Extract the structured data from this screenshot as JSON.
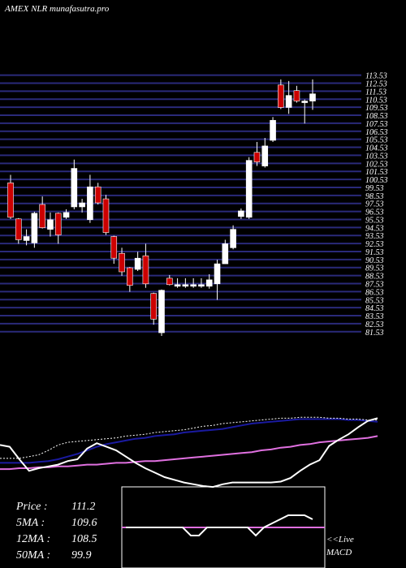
{
  "chart_data": {
    "type": "candlestick",
    "title": "AMEX  NLR munafasutra.pro",
    "up_color": "#ffffff",
    "down_color": "#cc0000",
    "grid_color": "#2a2a7a",
    "ylim": [
      80.9,
      114
    ],
    "yticks": [
      113.53,
      112.53,
      111.53,
      110.53,
      109.53,
      108.53,
      107.53,
      106.53,
      105.53,
      104.53,
      103.53,
      102.53,
      101.53,
      100.53,
      99.53,
      98.53,
      97.53,
      96.53,
      95.53,
      94.53,
      93.53,
      92.53,
      91.53,
      90.53,
      89.53,
      88.53,
      87.53,
      86.53,
      85.53,
      84.53,
      83.53,
      82.53,
      81.53
    ],
    "open": [
      100.1,
      95.6,
      92.9,
      92.6,
      97.4,
      94.3,
      96.3,
      95.8,
      97.1,
      97.1,
      95.5,
      99.6,
      98.1,
      93.4,
      91.3,
      89.5,
      89.3,
      91.0,
      86.3,
      81.4,
      88.2,
      87.2,
      87.2,
      87.2,
      87.2,
      87.2,
      87.5,
      90.0,
      92.0,
      95.9,
      95.8,
      103.9,
      102.2,
      105.4,
      112.3,
      109.5,
      111.6,
      110.1,
      110.3
    ],
    "high": [
      101.1,
      95.7,
      94.3,
      96.5,
      98.4,
      96.4,
      96.4,
      96.8,
      103.0,
      98.1,
      101.1,
      100.1,
      98.6,
      93.5,
      92.0,
      89.6,
      91.5,
      92.5,
      86.4,
      86.8,
      88.6,
      88.2,
      88.2,
      88.2,
      88.2,
      88.7,
      90.5,
      93.0,
      94.8,
      96.9,
      103.3,
      105.2,
      105.7,
      108.3,
      113.0,
      112.8,
      112.2,
      110.5,
      113.0
    ],
    "low": [
      95.6,
      92.5,
      92.3,
      92.0,
      94.4,
      93.4,
      92.5,
      95.6,
      96.8,
      96.4,
      95.1,
      97.4,
      93.6,
      90.0,
      88.5,
      86.5,
      89.1,
      87.0,
      82.4,
      81.0,
      87.3,
      87.0,
      87.0,
      87.0,
      87.0,
      86.9,
      85.5,
      90.0,
      91.8,
      95.6,
      95.6,
      102.2,
      102.0,
      105.2,
      109.3,
      108.7,
      110.1,
      107.5,
      109.2
    ],
    "close": [
      95.8,
      93.0,
      93.4,
      96.3,
      94.5,
      95.5,
      93.6,
      96.4,
      101.9,
      97.6,
      99.6,
      97.6,
      93.9,
      90.7,
      89.0,
      87.3,
      90.7,
      87.5,
      83.1,
      86.7,
      87.4,
      87.4,
      87.4,
      87.4,
      87.4,
      88.0,
      90.0,
      92.5,
      94.3,
      96.6,
      102.9,
      102.7,
      104.7,
      107.9,
      109.5,
      111.0,
      110.3,
      110.3,
      111.2
    ],
    "indicator": {
      "ylim": [
        0,
        100
      ],
      "series": [
        {
          "color": "#e070e0",
          "values": [
            29,
            29,
            30,
            30,
            31,
            31,
            32,
            32,
            33,
            34,
            34,
            35,
            36,
            36,
            37,
            38,
            38,
            39,
            40,
            41,
            42,
            43,
            44,
            45,
            46,
            47,
            48,
            50,
            51,
            53,
            54,
            56,
            57,
            59,
            60,
            61,
            62,
            63,
            64,
            66
          ]
        },
        {
          "color": "#1a1aa0",
          "values": [
            36,
            36,
            36,
            36,
            37,
            38,
            40,
            43,
            46,
            50,
            54,
            57,
            59,
            61,
            63,
            64,
            66,
            67,
            68,
            70,
            71,
            72,
            73,
            74,
            76,
            78,
            80,
            81,
            82,
            83,
            84,
            85,
            85,
            85,
            85,
            85,
            84,
            84,
            83,
            82
          ]
        },
        {
          "color": "#ffffff",
          "dashed": true,
          "values": [
            41,
            41,
            41,
            43,
            45,
            50,
            56,
            59,
            60,
            61,
            62,
            63,
            64,
            66,
            67,
            68,
            70,
            71,
            72,
            73,
            75,
            77,
            78,
            80,
            81,
            82,
            83,
            84,
            85,
            86,
            86,
            87,
            87,
            87,
            86,
            86,
            85,
            85,
            84,
            84
          ]
        },
        {
          "color": "#ffffff",
          "values": [
            56,
            54,
            40,
            27,
            30,
            32,
            34,
            38,
            40,
            52,
            58,
            54,
            50,
            43,
            36,
            30,
            25,
            20,
            17,
            14,
            12,
            10,
            9,
            12,
            14,
            14,
            14,
            14,
            14,
            15,
            19,
            27,
            34,
            39,
            55,
            62,
            68,
            76,
            83,
            86
          ]
        }
      ]
    },
    "macd": {
      "ylim": [
        -10,
        10
      ],
      "zero": 0,
      "zero_color": "#e070e0",
      "values": [
        0,
        0,
        0,
        0,
        0,
        0,
        0,
        0,
        -2,
        -2,
        0,
        0,
        0,
        0,
        0,
        0,
        -2,
        0,
        1,
        2,
        3,
        3,
        3,
        2
      ]
    },
    "stats": [
      {
        "label": "Price   :",
        "value": "111.2"
      },
      {
        "label": "5MA :",
        "value": "109.6"
      },
      {
        "label": "12MA :",
        "value": "108.5"
      },
      {
        "label": "50MA :",
        "value": "99.9"
      }
    ],
    "live": "<<Live",
    "macd_label": "MACD"
  }
}
